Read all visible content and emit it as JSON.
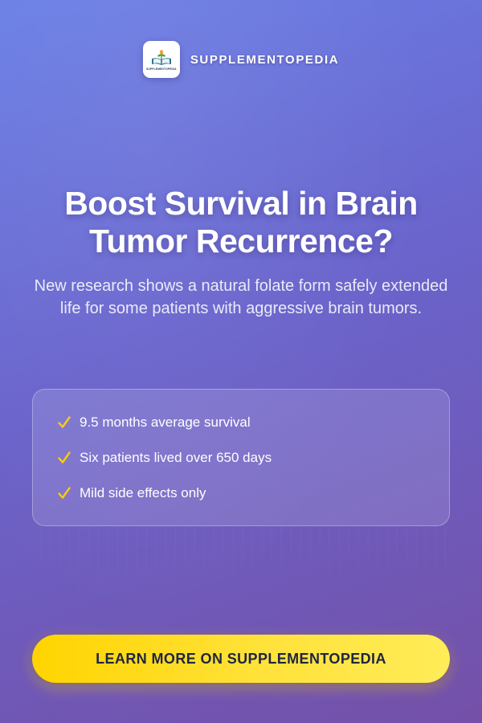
{
  "brand": {
    "name": "SUPPLEMENTOPEDIA",
    "logo_text": "SUPPLEMENTOPEDIA",
    "logo_icon": "open-book-with-plant-icon"
  },
  "hero": {
    "title": "Boost Survival in Brain Tumor Recurrence?",
    "subtitle": "New research shows a natural folate form safely extended life for some patients with aggressive brain tumors."
  },
  "benefits": [
    {
      "icon": "check-icon",
      "text": "9.5 months average survival"
    },
    {
      "icon": "check-icon",
      "text": "Six patients lived over 650 days"
    },
    {
      "icon": "check-icon",
      "text": "Mild side effects only"
    }
  ],
  "cta": {
    "label": "LEARN MORE ON SUPPLEMENTOPEDIA"
  },
  "colors": {
    "background_top": "#6a7fe6",
    "background_bottom": "#7450a8",
    "check": "#ffcc00",
    "cta_background": "#ffd400",
    "cta_text": "#1f2540"
  }
}
